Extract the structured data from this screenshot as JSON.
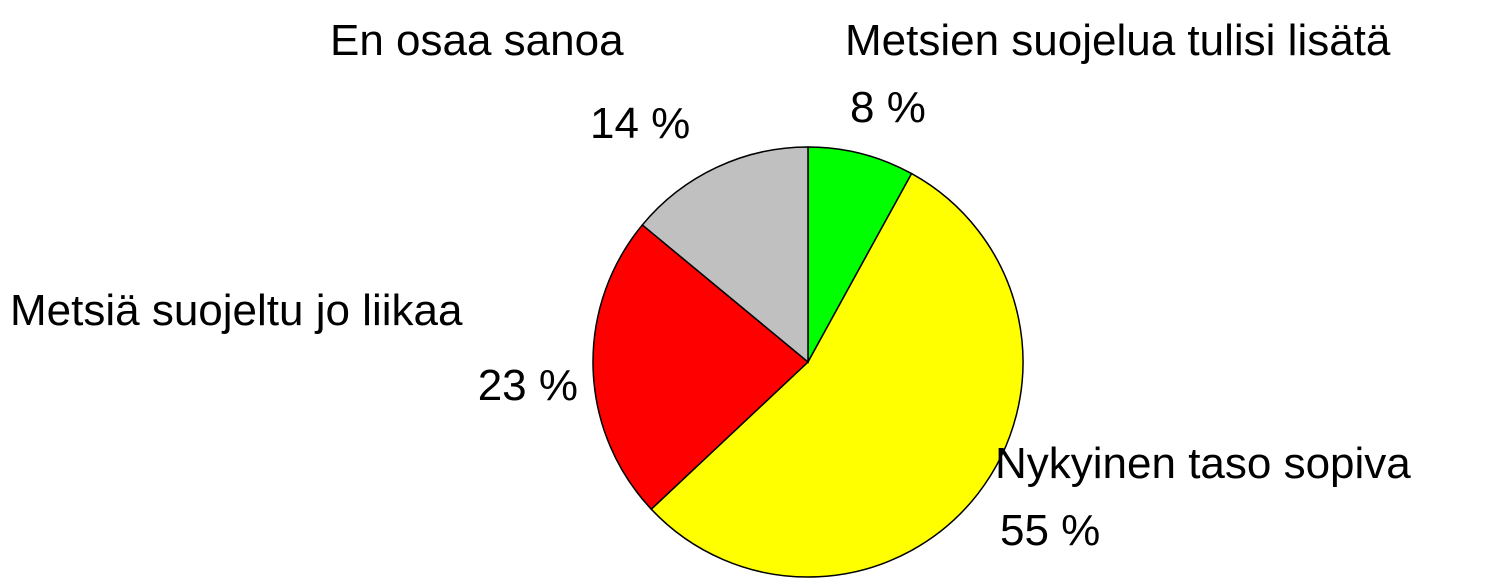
{
  "chart_data": {
    "type": "pie",
    "categories": [
      "Metsien suojelua tulisi lisätä",
      "Nykyinen taso sopiva",
      "Metsiä suojeltu jo liikaa",
      "En osaa sanoa"
    ],
    "values": [
      8,
      55,
      23,
      14
    ],
    "value_labels": [
      "8 %",
      "55 %",
      "23 %",
      "14 %"
    ],
    "colors": [
      "#00ff00",
      "#ffff00",
      "#ff0000",
      "#c0c0c0"
    ]
  }
}
